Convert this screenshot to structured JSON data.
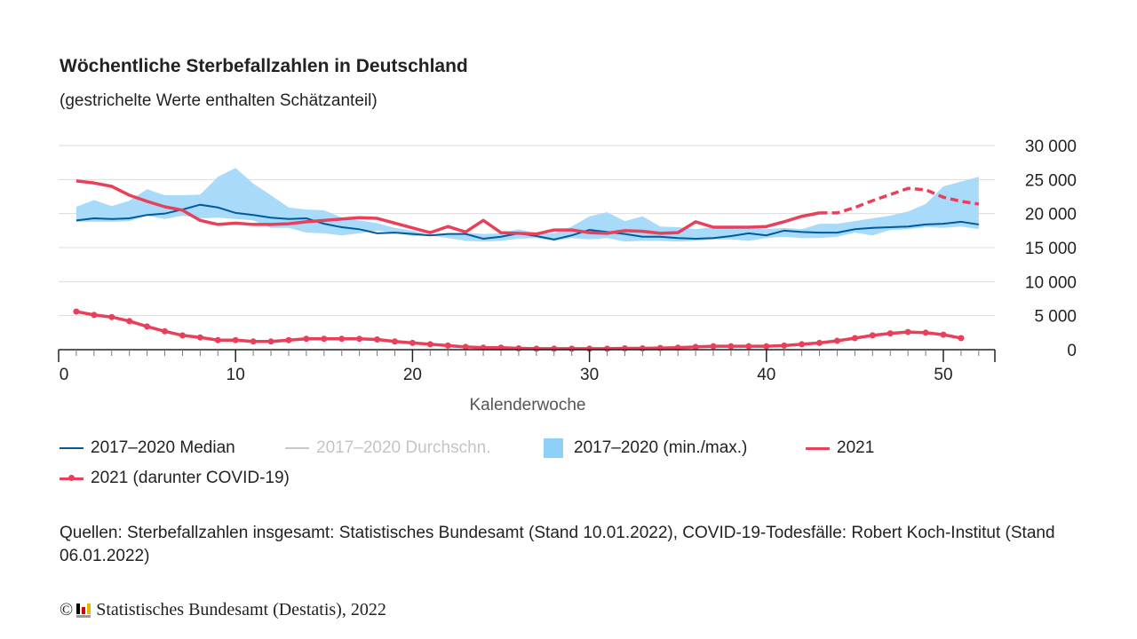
{
  "title": "Wöchentliche Sterbefallzahlen in Deutschland",
  "subtitle": "(gestrichelte Werte enthalten Schätzanteil)",
  "colors": {
    "median": "#005a9c",
    "band": "#a8dafa",
    "y2021": "#e8405a",
    "mean_disabled": "#c8c8c8"
  },
  "legend": [
    {
      "label": "2017–2020 Median",
      "icon": "line",
      "active": true
    },
    {
      "label": "2017–2020 Durchschn.",
      "icon": "line",
      "active": false
    },
    {
      "label": "2017–2020 (min./max.)",
      "icon": "area-swatch",
      "active": true
    },
    {
      "label": "2021",
      "icon": "line",
      "active": true
    },
    {
      "label": "2021 (darunter COVID-19)",
      "icon": "line-with-marker",
      "active": true
    }
  ],
  "source": "Quellen: Sterbefallzahlen insgesamt: Statistisches Bundesamt (Stand 10.01.2022), COVID-19-Todesfälle: Robert Koch-Institut (Stand 06.01.2022)",
  "copyright": {
    "symbol": "©",
    "text": "Statistisches Bundesamt (Destatis), 2022",
    "logo": "destatis-logo"
  },
  "chart_data": {
    "type": "line",
    "xlabel": "Kalenderwoche",
    "ylabel": "",
    "xlim": [
      0,
      53
    ],
    "ylim": [
      0,
      30000
    ],
    "x_ticks": [
      0,
      10,
      20,
      30,
      40,
      50
    ],
    "y_ticks": [
      0,
      5000,
      10000,
      15000,
      20000,
      25000,
      30000
    ],
    "y_tick_labels": [
      "0",
      "5 000",
      "10 000",
      "15 000",
      "20 000",
      "25 000",
      "30 000"
    ],
    "grid": "horizontal",
    "legend_position": "bottom",
    "y_axis_side": "right",
    "x": [
      1,
      2,
      3,
      4,
      5,
      6,
      7,
      8,
      9,
      10,
      11,
      12,
      13,
      14,
      15,
      16,
      17,
      18,
      19,
      20,
      21,
      22,
      23,
      24,
      25,
      26,
      27,
      28,
      29,
      30,
      31,
      32,
      33,
      34,
      35,
      36,
      37,
      38,
      39,
      40,
      41,
      42,
      43,
      44,
      45,
      46,
      47,
      48,
      49,
      50,
      51,
      52
    ],
    "series": [
      {
        "name": "2017–2020 (min./max.)",
        "kind": "band",
        "min": [
          18800,
          18800,
          18800,
          18900,
          19700,
          19200,
          19700,
          19300,
          19400,
          19200,
          19000,
          17900,
          17900,
          17200,
          17100,
          16800,
          17100,
          17500,
          17200,
          16700,
          16800,
          16400,
          16000,
          15900,
          16000,
          16300,
          16400,
          16000,
          16400,
          16200,
          16400,
          15900,
          16000,
          16000,
          15900,
          16000,
          16200,
          16200,
          16000,
          16400,
          16600,
          16400,
          16400,
          16600,
          17200,
          16800,
          17600,
          17700,
          18000,
          17900,
          18100,
          17700
        ],
        "max": [
          21000,
          22000,
          21100,
          21900,
          23600,
          22700,
          22700,
          22800,
          25400,
          26700,
          24400,
          22700,
          20900,
          20600,
          20500,
          19400,
          19000,
          18600,
          17900,
          17500,
          16800,
          17000,
          17200,
          17000,
          17100,
          17700,
          17100,
          17100,
          18100,
          19600,
          20200,
          18900,
          19600,
          18100,
          18000,
          17700,
          18000,
          18100,
          17900,
          17700,
          17900,
          17700,
          18500,
          18500,
          18900,
          19300,
          19700,
          20300,
          21400,
          24000,
          24700,
          25400
        ]
      },
      {
        "name": "2017–2020 Median",
        "kind": "line",
        "values": [
          19000,
          19300,
          19200,
          19300,
          19800,
          20000,
          20600,
          21300,
          20900,
          20100,
          19800,
          19400,
          19200,
          19300,
          18500,
          18000,
          17700,
          17100,
          17200,
          17000,
          16800,
          17000,
          17000,
          16300,
          16600,
          17100,
          16700,
          16200,
          16800,
          17600,
          17300,
          17000,
          16600,
          16600,
          16400,
          16300,
          16400,
          16700,
          17100,
          16800,
          17500,
          17300,
          17200,
          17200,
          17700,
          17900,
          18000,
          18100,
          18400,
          18500,
          18800,
          18400
        ]
      },
      {
        "name": "2021",
        "kind": "line",
        "estimated_from_week": 43,
        "values": [
          24800,
          24500,
          24000,
          22700,
          21800,
          21000,
          20500,
          19000,
          18400,
          18600,
          18400,
          18400,
          18500,
          18800,
          19000,
          19200,
          19400,
          19300,
          18600,
          17900,
          17200,
          18100,
          17300,
          19000,
          17200,
          17100,
          17000,
          17600,
          17600,
          17200,
          17100,
          17500,
          17400,
          17100,
          17200,
          18800,
          18000,
          18000,
          18000,
          18100,
          18800,
          19600,
          20100,
          20100,
          20900,
          21900,
          22800,
          23700,
          23500,
          22400,
          21800,
          21400
        ]
      },
      {
        "name": "2021 (darunter COVID-19)",
        "kind": "line-markers",
        "values": [
          5600,
          5100,
          4800,
          4200,
          3400,
          2700,
          2100,
          1800,
          1400,
          1400,
          1200,
          1200,
          1400,
          1600,
          1600,
          1600,
          1600,
          1500,
          1200,
          1000,
          800,
          600,
          400,
          300,
          300,
          200,
          150,
          150,
          150,
          150,
          150,
          200,
          200,
          250,
          300,
          400,
          500,
          500,
          500,
          500,
          600,
          800,
          1000,
          1300,
          1700,
          2100,
          2400,
          2600,
          2500,
          2200,
          1700,
          null
        ]
      }
    ]
  }
}
